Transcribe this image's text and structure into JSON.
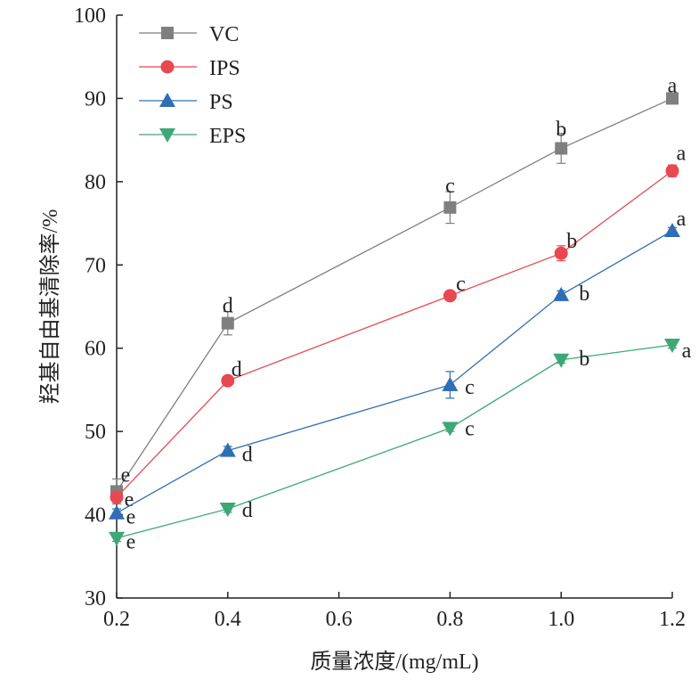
{
  "chart_data": {
    "type": "line",
    "title": "",
    "xlabel": "质量浓度/(mg/mL)",
    "ylabel": "羟基自由基清除率/%",
    "xlim": [
      0.2,
      1.2
    ],
    "ylim": [
      30,
      100
    ],
    "x_ticks": [
      "0.2",
      "0.4",
      "0.6",
      "0.8",
      "1.0",
      "1.2"
    ],
    "y_ticks": [
      "30",
      "40",
      "50",
      "60",
      "70",
      "80",
      "90",
      "100"
    ],
    "grid": false,
    "legend_position": "top-left",
    "x": [
      0.2,
      0.4,
      0.8,
      1.0,
      1.2
    ],
    "series": [
      {
        "name": "VC",
        "color": "#7f7f7f",
        "marker": "square",
        "values": [
          42.8,
          63.0,
          76.9,
          84.0,
          90.0
        ],
        "errors": [
          1.5,
          1.4,
          1.9,
          1.8,
          0.5
        ],
        "labels": [
          "e",
          "d",
          "c",
          "b",
          "a"
        ]
      },
      {
        "name": "IPS",
        "color": "#e8484f",
        "marker": "circle",
        "values": [
          42.1,
          56.1,
          66.3,
          71.4,
          81.3
        ],
        "errors": [
          0.6,
          0.5,
          0.5,
          0.9,
          0.7
        ],
        "labels": [
          "e",
          "d",
          "c",
          "b",
          "a"
        ]
      },
      {
        "name": "PS",
        "color": "#2f6db5",
        "marker": "triangle-up",
        "values": [
          40.2,
          47.7,
          55.6,
          66.4,
          74.1
        ],
        "errors": [
          0.5,
          0.5,
          1.6,
          0.5,
          0.4
        ],
        "labels": [
          "e",
          "d",
          "c",
          "b",
          "a"
        ]
      },
      {
        "name": "EPS",
        "color": "#3ea777",
        "marker": "triangle-down",
        "values": [
          37.2,
          40.7,
          50.4,
          58.6,
          60.4
        ],
        "errors": [
          0.4,
          0.4,
          0.4,
          0.4,
          0.4
        ],
        "labels": [
          "e",
          "d",
          "c",
          "b",
          "a"
        ]
      }
    ]
  }
}
